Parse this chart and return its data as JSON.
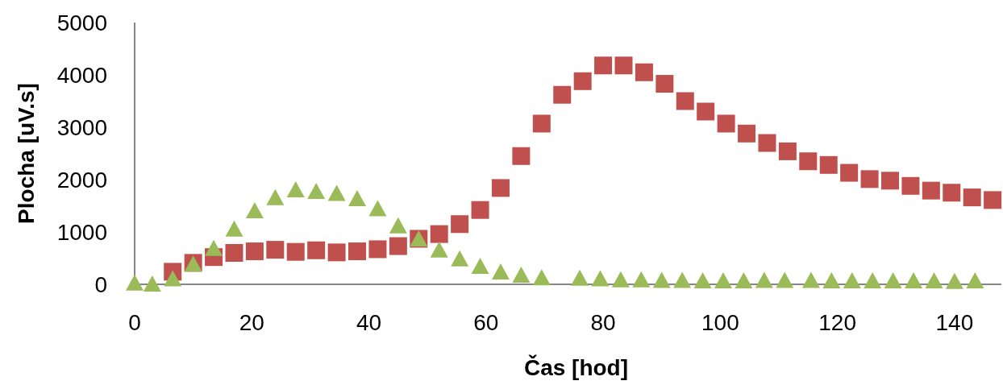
{
  "chart_data": {
    "type": "scatter",
    "xlabel": "Čas [hod]",
    "ylabel": "Plocha [uV.s]",
    "xlim": [
      0,
      148
    ],
    "ylim": [
      0,
      5000
    ],
    "xticks": [
      0,
      20,
      40,
      60,
      80,
      100,
      120,
      140
    ],
    "yticks": [
      0,
      1000,
      2000,
      3000,
      4000,
      5000
    ],
    "grid": false,
    "series": [
      {
        "color": "#c0504d",
        "marker": "square",
        "x": [
          6.5,
          10,
          13.5,
          17,
          20.5,
          24,
          27.5,
          31,
          34.5,
          38,
          41.5,
          45,
          48.5,
          52,
          55.5,
          59,
          62.5,
          66,
          69.5,
          73,
          76.5,
          80,
          83.5,
          87,
          90.5,
          94,
          97.5,
          101,
          104.5,
          108,
          111.5,
          115,
          118.5,
          122,
          125.5,
          129,
          132.5,
          136,
          139.5,
          143,
          146.5
        ],
        "values": [
          240,
          410,
          520,
          600,
          630,
          660,
          620,
          650,
          610,
          630,
          670,
          730,
          870,
          960,
          1150,
          1420,
          1840,
          2450,
          3070,
          3620,
          3880,
          4180,
          4180,
          4050,
          3830,
          3500,
          3300,
          3070,
          2880,
          2700,
          2540,
          2350,
          2280,
          2130,
          2010,
          1980,
          1880,
          1790,
          1750,
          1660,
          1610
        ]
      },
      {
        "color": "#9bbb59",
        "marker": "triangle",
        "x": [
          0,
          3,
          6.5,
          10,
          13.5,
          17,
          20.5,
          24,
          27.5,
          31,
          34.5,
          38,
          41.5,
          45,
          48.5,
          52,
          55.5,
          59,
          62.5,
          66,
          69.5,
          76,
          79.5,
          83,
          86.5,
          90,
          93.5,
          97,
          100.5,
          104,
          107.5,
          111,
          115.5,
          119,
          122.5,
          126,
          129.5,
          133,
          136.5,
          140,
          143.5
        ],
        "values": [
          20,
          0,
          100,
          380,
          680,
          1050,
          1400,
          1650,
          1800,
          1770,
          1730,
          1630,
          1440,
          1110,
          860,
          650,
          480,
          340,
          230,
          170,
          120,
          110,
          100,
          80,
          80,
          70,
          70,
          60,
          60,
          60,
          70,
          70,
          70,
          60,
          60,
          60,
          60,
          60,
          60,
          50,
          60
        ]
      }
    ]
  }
}
